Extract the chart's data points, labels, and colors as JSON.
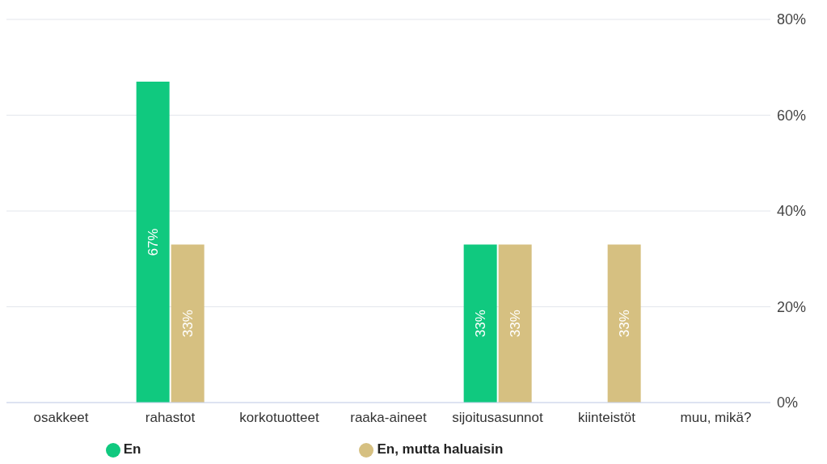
{
  "chart_data": {
    "type": "bar",
    "categories": [
      "osakkeet",
      "rahastot",
      "korkotuotteet",
      "raaka-aineet",
      "sijoitusasunnot",
      "kiinteistöt",
      "muu, mikä?"
    ],
    "series": [
      {
        "name": "En",
        "color": "#10c97f",
        "values": [
          0,
          67,
          0,
          0,
          33,
          0,
          0
        ],
        "value_labels": [
          null,
          "67%",
          null,
          null,
          "33%",
          null,
          null
        ]
      },
      {
        "name": "En, mutta haluaisin",
        "color": "#d6c081",
        "values": [
          0,
          33,
          0,
          0,
          33,
          33,
          0
        ],
        "value_labels": [
          null,
          "33%",
          null,
          null,
          "33%",
          "33%",
          null
        ]
      }
    ],
    "ylim": [
      0,
      80
    ],
    "yticks": [
      {
        "value": 0,
        "label": "0%"
      },
      {
        "value": 20,
        "label": "20%"
      },
      {
        "value": 40,
        "label": "40%"
      },
      {
        "value": 60,
        "label": "60%"
      },
      {
        "value": 80,
        "label": "80%"
      }
    ],
    "grid": "y",
    "legend": "bottom"
  }
}
